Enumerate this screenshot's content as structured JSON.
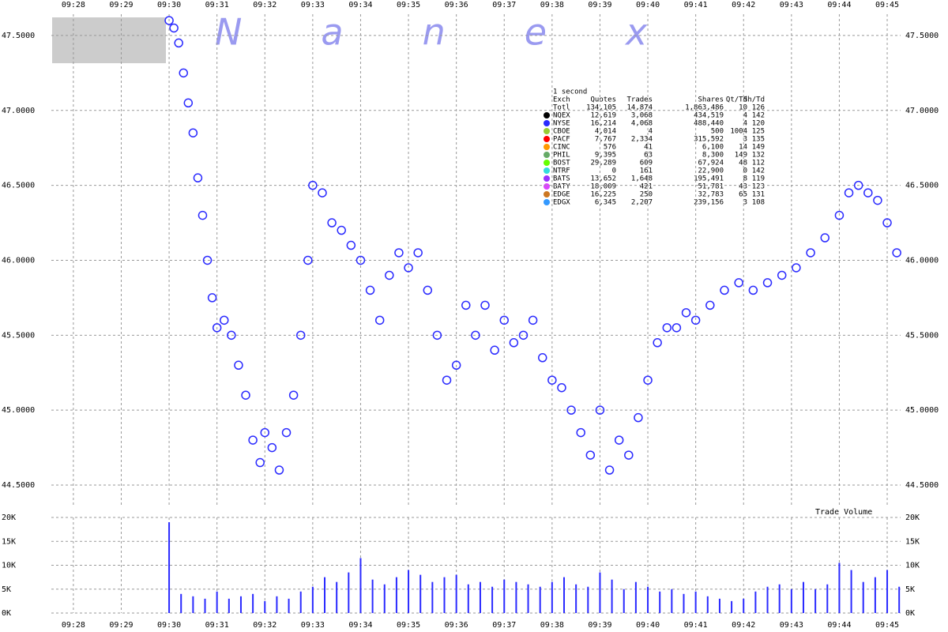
{
  "chart_data": [
    {
      "type": "scatter",
      "watermark": "Nanex",
      "xlim": [
        567.54,
        585.28
      ],
      "xticks": [
        {
          "value": 568,
          "label": "09:28"
        },
        {
          "value": 569,
          "label": "09:29"
        },
        {
          "value": 570,
          "label": "09:30"
        },
        {
          "value": 571,
          "label": "09:31"
        },
        {
          "value": 572,
          "label": "09:32"
        },
        {
          "value": 573,
          "label": "09:33"
        },
        {
          "value": 574,
          "label": "09:34"
        },
        {
          "value": 575,
          "label": "09:35"
        },
        {
          "value": 576,
          "label": "09:36"
        },
        {
          "value": 577,
          "label": "09:37"
        },
        {
          "value": 578,
          "label": "09:38"
        },
        {
          "value": 579,
          "label": "09:39"
        },
        {
          "value": 580,
          "label": "09:40"
        },
        {
          "value": 581,
          "label": "09:41"
        },
        {
          "value": 582,
          "label": "09:42"
        },
        {
          "value": 583,
          "label": "09:43"
        },
        {
          "value": 584,
          "label": "09:44"
        },
        {
          "value": 585,
          "label": "09:45"
        }
      ],
      "ylim": [
        44.363,
        47.642
      ],
      "yticks": [
        {
          "value": 44.5,
          "label": "44.5000"
        },
        {
          "value": 45,
          "label": "45.0000"
        },
        {
          "value": 45.5,
          "label": "45.5000"
        },
        {
          "value": 46,
          "label": "46.0000"
        },
        {
          "value": 46.5,
          "label": "46.5000"
        },
        {
          "value": 47,
          "label": "47.0000"
        },
        {
          "value": 47.5,
          "label": "47.5000"
        }
      ],
      "grid": true,
      "x": [
        570.0,
        570.1,
        570.2,
        570.3,
        570.4,
        570.5,
        570.6,
        570.7,
        570.8,
        570.9,
        571.0,
        571.15,
        571.3,
        571.45,
        571.6,
        571.75,
        571.9,
        572.0,
        572.15,
        572.3,
        572.45,
        572.6,
        572.75,
        572.9,
        573.0,
        573.2,
        573.4,
        573.6,
        573.8,
        574.0,
        574.2,
        574.4,
        574.6,
        574.8,
        575.0,
        575.2,
        575.4,
        575.6,
        575.8,
        576.0,
        576.2,
        576.4,
        576.6,
        576.8,
        577.0,
        577.2,
        577.4,
        577.6,
        577.8,
        578.0,
        578.2,
        578.4,
        578.6,
        578.8,
        579.0,
        579.2,
        579.4,
        579.6,
        579.8,
        580.0,
        580.2,
        580.4,
        580.6,
        580.8,
        581.0,
        581.3,
        581.6,
        581.9,
        582.2,
        582.5,
        582.8,
        583.1,
        583.4,
        583.7,
        584.0,
        584.2,
        584.4,
        584.6,
        584.8,
        585.0,
        585.2
      ],
      "series": [
        {
          "color": "#2a2aff",
          "values": [
            47.6,
            47.55,
            47.45,
            47.25,
            47.05,
            46.85,
            46.55,
            46.3,
            46.0,
            45.75,
            45.55,
            45.6,
            45.5,
            45.3,
            45.1,
            44.8,
            44.65,
            44.85,
            44.75,
            44.6,
            44.85,
            45.1,
            45.5,
            46.0,
            46.5,
            46.45,
            46.25,
            46.2,
            46.1,
            46.0,
            45.8,
            45.6,
            45.9,
            46.05,
            45.95,
            46.05,
            45.8,
            45.5,
            45.2,
            45.3,
            45.7,
            45.5,
            45.7,
            45.4,
            45.6,
            45.45,
            45.5,
            45.6,
            45.35,
            45.2,
            45.15,
            45.0,
            44.85,
            44.7,
            45.0,
            44.6,
            44.8,
            44.7,
            44.95,
            45.2,
            45.45,
            45.55,
            45.55,
            45.65,
            45.6,
            45.7,
            45.8,
            45.85,
            45.8,
            45.85,
            45.9,
            45.95,
            46.05,
            46.15,
            46.3,
            46.45,
            46.5,
            46.45,
            46.4,
            46.25,
            46.05
          ]
        }
      ],
      "legend_table": {
        "title": "1 second",
        "columns": [
          "Exch",
          "Quotes",
          "Trades",
          "Shares",
          "Qt/Td",
          "Sh/Td"
        ],
        "colors": [
          null,
          "#000000",
          "#2a2aff",
          "#99cc33",
          "#ff0000",
          "#ff9900",
          "#66aa66",
          "#66ff00",
          "#33dddd",
          "#9933ff",
          "#dd44ff",
          "#cc7722",
          "#3399ff"
        ],
        "rows": [
          [
            "Totl",
            "134,105",
            "14,874",
            "1,863,486",
            "10",
            "126"
          ],
          [
            "NQEX",
            "12,619",
            "3,068",
            "434,519",
            "4",
            "142"
          ],
          [
            "NYSE",
            "16,214",
            "4,068",
            "488,440",
            "4",
            "120"
          ],
          [
            "CBOE",
            "4,014",
            "4",
            "500",
            "1004",
            "125"
          ],
          [
            "PACF",
            "7,767",
            "2,334",
            "315,592",
            "3",
            "135"
          ],
          [
            "CINC",
            "576",
            "41",
            "6,100",
            "14",
            "149"
          ],
          [
            "PHIL",
            "9,395",
            "63",
            "8,300",
            "149",
            "132"
          ],
          [
            "BOST",
            "29,289",
            "609",
            "67,924",
            "48",
            "112"
          ],
          [
            "NTRF",
            "0",
            "161",
            "22,900",
            "0",
            "142"
          ],
          [
            "BATS",
            "13,652",
            "1,648",
            "195,491",
            "8",
            "119"
          ],
          [
            "BATY",
            "18,009",
            "421",
            "51,781",
            "43",
            "123"
          ],
          [
            "EDGE",
            "16,225",
            "250",
            "32,783",
            "65",
            "131"
          ],
          [
            "EDGX",
            "6,345",
            "2,207",
            "239,156",
            "3",
            "108"
          ]
        ]
      }
    },
    {
      "type": "bar",
      "title": "Trade Volume",
      "color": "#2a2aff",
      "xlim": [
        567.54,
        585.28
      ],
      "xticks": [
        {
          "value": 568,
          "label": "09:28"
        },
        {
          "value": 569,
          "label": "09:29"
        },
        {
          "value": 570,
          "label": "09:30"
        },
        {
          "value": 571,
          "label": "09:31"
        },
        {
          "value": 572,
          "label": "09:32"
        },
        {
          "value": 573,
          "label": "09:33"
        },
        {
          "value": 574,
          "label": "09:34"
        },
        {
          "value": 575,
          "label": "09:35"
        },
        {
          "value": 576,
          "label": "09:36"
        },
        {
          "value": 577,
          "label": "09:37"
        },
        {
          "value": 578,
          "label": "09:38"
        },
        {
          "value": 579,
          "label": "09:39"
        },
        {
          "value": 580,
          "label": "09:40"
        },
        {
          "value": 581,
          "label": "09:41"
        },
        {
          "value": 582,
          "label": "09:42"
        },
        {
          "value": 583,
          "label": "09:43"
        },
        {
          "value": 584,
          "label": "09:44"
        },
        {
          "value": 585,
          "label": "09:45"
        }
      ],
      "ylim": [
        0,
        20000
      ],
      "yticks": [
        {
          "value": 0,
          "label": "0K"
        },
        {
          "value": 5000,
          "label": "5K"
        },
        {
          "value": 10000,
          "label": "10K"
        },
        {
          "value": 15000,
          "label": "15K"
        },
        {
          "value": 20000,
          "label": "20K"
        }
      ],
      "grid": true,
      "x": [
        570.0,
        570.25,
        570.5,
        570.75,
        571.0,
        571.25,
        571.5,
        571.75,
        572.0,
        572.25,
        572.5,
        572.75,
        573.0,
        573.25,
        573.5,
        573.75,
        574.0,
        574.25,
        574.5,
        574.75,
        575.0,
        575.25,
        575.5,
        575.75,
        576.0,
        576.25,
        576.5,
        576.75,
        577.0,
        577.25,
        577.5,
        577.75,
        578.0,
        578.25,
        578.5,
        578.75,
        579.0,
        579.25,
        579.5,
        579.75,
        580.0,
        580.25,
        580.5,
        580.75,
        581.0,
        581.25,
        581.5,
        581.75,
        582.0,
        582.25,
        582.5,
        582.75,
        583.0,
        583.25,
        583.5,
        583.75,
        584.0,
        584.25,
        584.5,
        584.75,
        585.0,
        585.25
      ],
      "values": [
        19000,
        4000,
        3500,
        3000,
        4500,
        3000,
        3500,
        4000,
        2500,
        3500,
        3000,
        4500,
        5500,
        7500,
        6500,
        8500,
        11500,
        7000,
        6000,
        7500,
        9000,
        8000,
        6500,
        7500,
        8000,
        6000,
        6500,
        5500,
        7000,
        6500,
        6000,
        5500,
        6500,
        7500,
        6000,
        5500,
        8500,
        7000,
        5000,
        6500,
        5500,
        4500,
        5000,
        4000,
        4500,
        3500,
        3000,
        2500,
        3000,
        4500,
        5500,
        6000,
        5000,
        6500,
        5000,
        6000,
        10500,
        9000,
        6500,
        7500,
        9000,
        5500
      ]
    }
  ]
}
